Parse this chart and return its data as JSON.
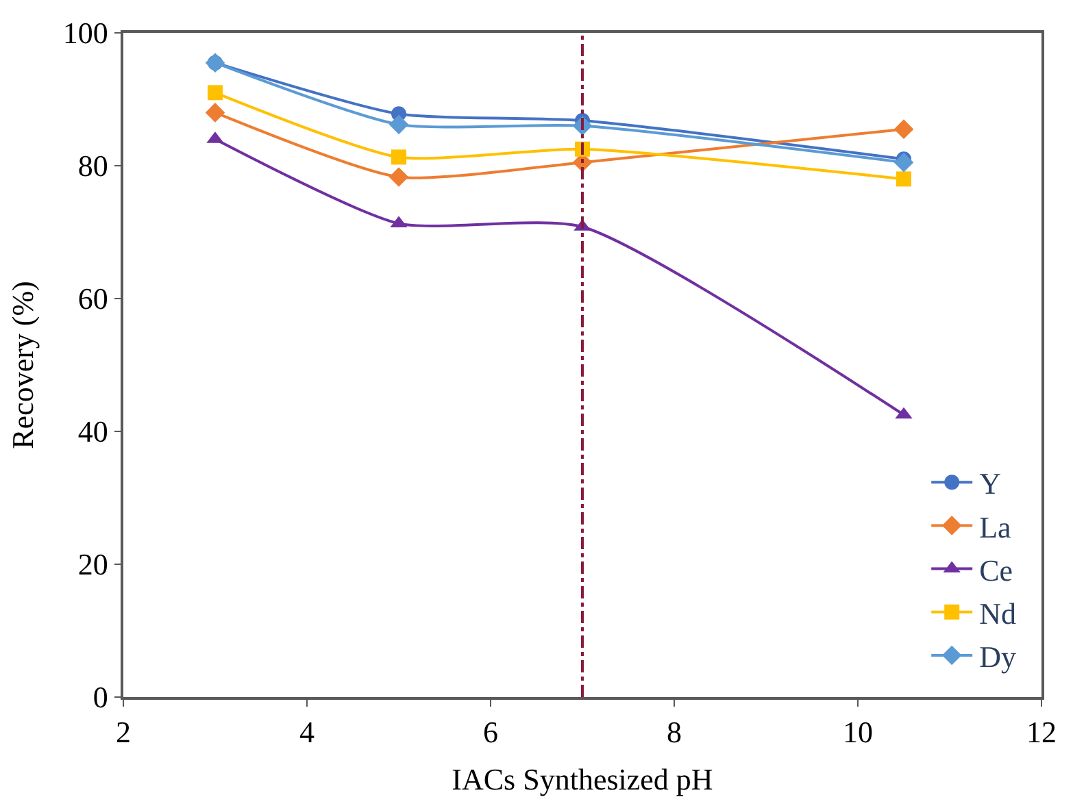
{
  "chart_data": {
    "type": "line",
    "xlabel": "IACs Synthesized pH",
    "ylabel": "Recovery (%)",
    "x": [
      3,
      5,
      7,
      10.5
    ],
    "xlim": [
      2,
      12
    ],
    "xticks": [
      2,
      4,
      6,
      8,
      10,
      12
    ],
    "ylim": [
      0,
      100
    ],
    "yticks": [
      0,
      20,
      40,
      60,
      80,
      100
    ],
    "legend": "bottom right",
    "line_style": "solid",
    "series": [
      {
        "name": "Y",
        "color": "#4472c4",
        "marker": "circle",
        "values": [
          95.5,
          87.8,
          86.8,
          81.0
        ]
      },
      {
        "name": "La",
        "color": "#ed7d31",
        "marker": "diamond",
        "values": [
          88.0,
          78.3,
          80.5,
          85.5
        ]
      },
      {
        "name": "Ce",
        "color": "#7030a0",
        "marker": "triangle",
        "values": [
          84.0,
          71.3,
          70.8,
          42.5
        ]
      },
      {
        "name": "Nd",
        "color": "#ffc000",
        "marker": "square",
        "values": [
          91.0,
          81.3,
          82.5,
          78.0
        ]
      },
      {
        "name": "Dy",
        "color": "#5b9bd5",
        "marker": "diamond",
        "values": [
          95.5,
          86.2,
          86.0,
          80.5
        ]
      }
    ],
    "ref_lines": [
      {
        "axis": "x",
        "value": 7,
        "color": "#8b1a3a",
        "line_style": "dashdot"
      }
    ]
  }
}
